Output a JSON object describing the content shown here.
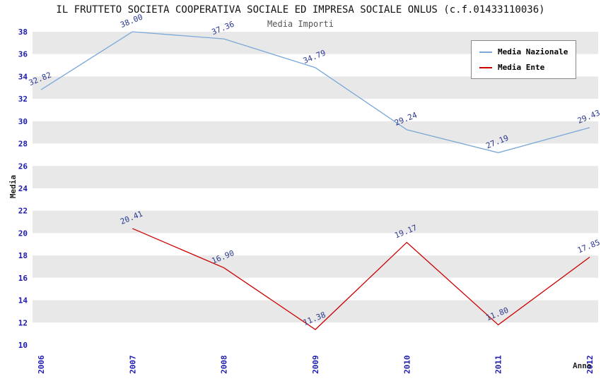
{
  "chart_data": {
    "type": "line",
    "title": "IL FRUTTETO SOCIETA COOPERATIVA SOCIALE ED IMPRESA SOCIALE ONLUS (c.f.01433110036)",
    "subtitle": "Media Importi",
    "xlabel": "Anno",
    "ylabel": "Media",
    "x_categories": [
      2006,
      2007,
      2008,
      2009,
      2010,
      2011,
      2012
    ],
    "ylim": [
      10,
      38
    ],
    "ytick_step": 2,
    "grid": "horizontal-bands",
    "band_colors": [
      "#e8e8e8",
      "#ffffff"
    ],
    "legend_position": "top-right",
    "axis_tick_color": "#1a1aae",
    "point_label_color": "#2b3990",
    "series": [
      {
        "name": "Media Nazionale",
        "color": "#7aa8d8",
        "x": [
          2006,
          2007,
          2008,
          2009,
          2010,
          2011,
          2012
        ],
        "values": [
          32.82,
          38.0,
          37.36,
          34.79,
          29.24,
          27.19,
          29.43
        ]
      },
      {
        "name": "Media Ente",
        "color": "#cc0000",
        "x": [
          2007,
          2008,
          2009,
          2010,
          2011,
          2012
        ],
        "values": [
          20.41,
          16.9,
          11.38,
          19.17,
          11.8,
          17.85
        ]
      }
    ]
  }
}
